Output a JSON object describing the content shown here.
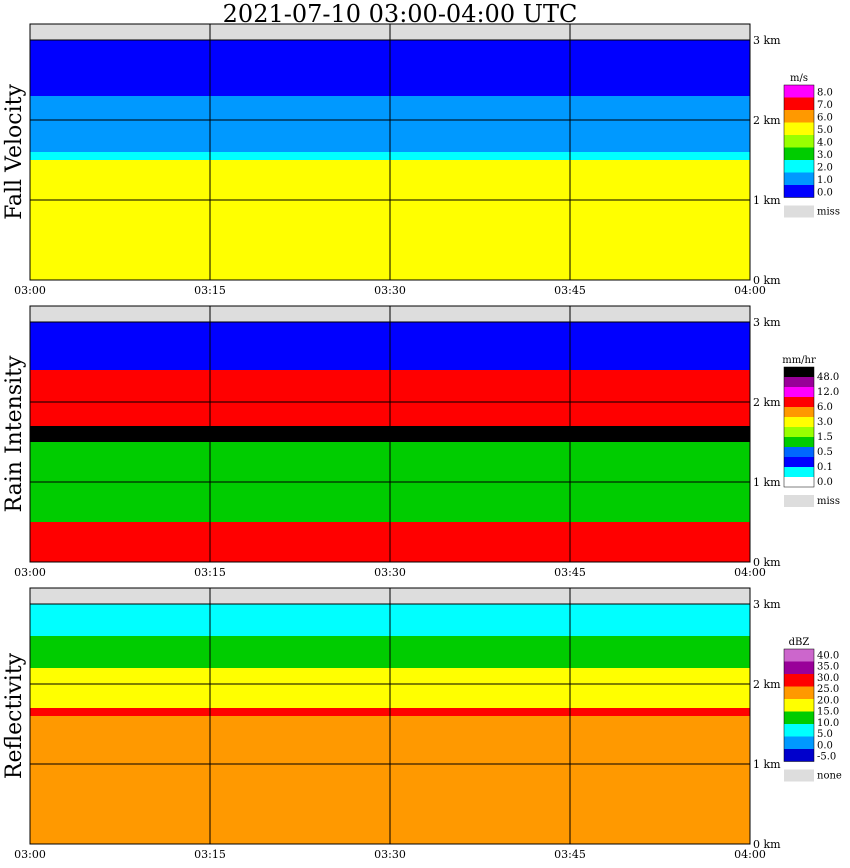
{
  "title": "2021-07-10   03:00-04:00 UTC",
  "time_ticks": [
    "03:00",
    "03:15",
    "03:30",
    "03:45",
    "04:00"
  ],
  "height_ticks": [
    "0 km",
    "1 km",
    "2 km",
    "3 km"
  ],
  "chart_data": [
    {
      "type": "heatmap",
      "ylabel": "Fall Velocity",
      "units": "m/s",
      "levels": [
        "8.0",
        "7.0",
        "6.0",
        "5.0",
        "4.0",
        "3.0",
        "2.0",
        "1.0",
        "0.0"
      ],
      "colors": [
        "#ff00ff",
        "#ff0000",
        "#ff9900",
        "#ffff00",
        "#99ff00",
        "#00cc00",
        "#00ffff",
        "#0099ff",
        "#0000ff"
      ],
      "missing_label": "miss",
      "layers": [
        {
          "from_km": 0.0,
          "to_km": 1.5,
          "value": "4.0-5.0",
          "color": "#ffff00"
        },
        {
          "from_km": 1.5,
          "to_km": 1.6,
          "value": "2.0-3.0",
          "color": "#00ffff"
        },
        {
          "from_km": 1.6,
          "to_km": 2.3,
          "value": "1.0-2.0",
          "color": "#0099ff"
        },
        {
          "from_km": 2.3,
          "to_km": 3.0,
          "value": "0.0-1.0",
          "color": "#0000ff"
        }
      ]
    },
    {
      "type": "heatmap",
      "ylabel": "Rain Intensity",
      "units": "mm/hr",
      "levels": [
        "48.0",
        "12.0",
        "6.0",
        "3.0",
        "1.5",
        "0.5",
        "0.1",
        "0.0"
      ],
      "colors": [
        "#000000",
        "#990099",
        "#ff00ff",
        "#ff0000",
        "#ff9900",
        "#ffff00",
        "#99ff00",
        "#00cc00",
        "#0066ff",
        "#0000ff",
        "#00ffff",
        "#ffffff"
      ],
      "missing_label": "miss",
      "layers": [
        {
          "from_km": 0.0,
          "to_km": 0.5,
          "value": "3.0-6.0",
          "color": "#ff0000"
        },
        {
          "from_km": 0.5,
          "to_km": 1.5,
          "value": "0.5-1.5",
          "color": "#00cc00"
        },
        {
          "from_km": 1.5,
          "to_km": 1.7,
          "value": "48.0",
          "color": "#000000"
        },
        {
          "from_km": 1.7,
          "to_km": 2.4,
          "value": "3.0-6.0",
          "color": "#ff0000"
        },
        {
          "from_km": 2.4,
          "to_km": 3.0,
          "value": "0.1-0.5",
          "color": "#0000ff"
        }
      ]
    },
    {
      "type": "heatmap",
      "ylabel": "Reflectivity",
      "units": "dBZ",
      "levels": [
        "40.0",
        "35.0",
        "30.0",
        "25.0",
        "20.0",
        "15.0",
        "10.0",
        "5.0",
        "0.0",
        "-5.0"
      ],
      "colors": [
        "#cc66cc",
        "#990099",
        "#ff0000",
        "#ff9900",
        "#ffff00",
        "#00cc00",
        "#00ffff",
        "#0099ff",
        "#0000cc"
      ],
      "missing_label": "none",
      "layers": [
        {
          "from_km": 0.0,
          "to_km": 1.6,
          "value": "25.0-30.0",
          "color": "#ff9900"
        },
        {
          "from_km": 1.6,
          "to_km": 1.7,
          "value": "30.0-35.0",
          "color": "#ff0000"
        },
        {
          "from_km": 1.7,
          "to_km": 2.2,
          "value": "20.0-25.0",
          "color": "#ffff00"
        },
        {
          "from_km": 2.2,
          "to_km": 2.6,
          "value": "15.0-20.0",
          "color": "#00cc00"
        },
        {
          "from_km": 2.6,
          "to_km": 3.0,
          "value": "10.0-15.0",
          "color": "#00ffff"
        }
      ]
    }
  ]
}
